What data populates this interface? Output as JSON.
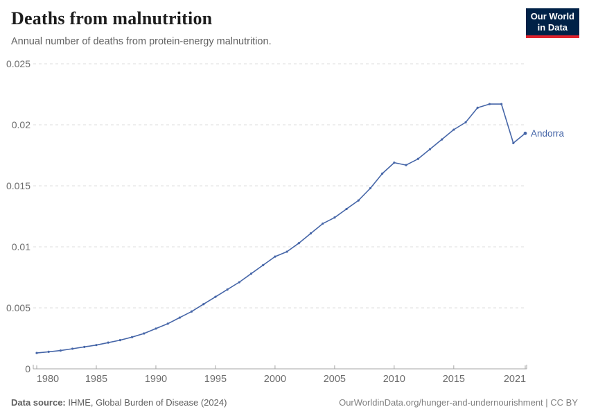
{
  "header": {
    "title": "Deaths from malnutrition",
    "subtitle": "Annual number of deaths from protein-energy malnutrition."
  },
  "logo": {
    "line1": "Our World",
    "line2": "in Data",
    "bg_color": "#002147",
    "stripe_color": "#e0232d"
  },
  "chart_data": {
    "type": "line",
    "title": "Deaths from malnutrition",
    "xlabel": "",
    "ylabel": "",
    "grid": "horizontal-dashed",
    "legend_position": "end-of-line-label",
    "entity_label": "Andorra",
    "line_color": "#4666a8",
    "grid_color": "#dddddd",
    "axis_color": "#a5a5a5",
    "tick_text_color": "#6b6b6b",
    "ylim": [
      0,
      0.025
    ],
    "yticks": [
      0,
      0.005,
      0.01,
      0.015,
      0.02,
      0.025
    ],
    "ytick_labels": [
      "0",
      "0.005",
      "0.01",
      "0.015",
      "0.02",
      "0.025"
    ],
    "xticks": [
      1980,
      1985,
      1990,
      1995,
      2000,
      2005,
      2010,
      2015,
      2021
    ],
    "series": [
      {
        "name": "Andorra",
        "x": [
          1980,
          1981,
          1982,
          1983,
          1984,
          1985,
          1986,
          1987,
          1988,
          1989,
          1990,
          1991,
          1992,
          1993,
          1994,
          1995,
          1996,
          1997,
          1998,
          1999,
          2000,
          2001,
          2002,
          2003,
          2004,
          2005,
          2006,
          2007,
          2008,
          2009,
          2010,
          2011,
          2012,
          2013,
          2014,
          2015,
          2016,
          2017,
          2018,
          2019,
          2020,
          2021
        ],
        "values": [
          0.0013,
          0.0014,
          0.0015,
          0.00165,
          0.0018,
          0.00195,
          0.00215,
          0.00235,
          0.0026,
          0.0029,
          0.0033,
          0.0037,
          0.0042,
          0.0047,
          0.0053,
          0.0059,
          0.0065,
          0.0071,
          0.0078,
          0.0085,
          0.0092,
          0.0096,
          0.0103,
          0.0111,
          0.0119,
          0.0124,
          0.0131,
          0.0138,
          0.0148,
          0.016,
          0.0169,
          0.0167,
          0.0172,
          0.018,
          0.0188,
          0.0196,
          0.0202,
          0.0214,
          0.0217,
          0.0217,
          0.0185,
          0.0193
        ]
      }
    ]
  },
  "footer": {
    "source_label": "Data source:",
    "source_text": " IHME, Global Burden of Disease (2024)",
    "credit": "OurWorldinData.org/hunger-and-undernourishment | CC BY"
  }
}
